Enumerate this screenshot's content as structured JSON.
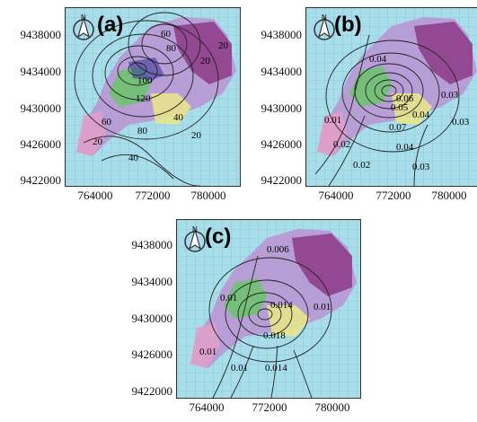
{
  "panels": [
    {
      "id": "a",
      "label": "(a)",
      "y_ticks": [
        "9438000",
        "9434000",
        "9430000",
        "9426000",
        "9422000"
      ],
      "x_ticks": [
        "764000",
        "772000",
        "780000"
      ],
      "contour_labels": [
        "60",
        "80",
        "100",
        "120",
        "20",
        "60",
        "80",
        "40",
        "20",
        "40",
        "20",
        "20"
      ]
    },
    {
      "id": "b",
      "label": "(b)",
      "y_ticks": [
        "9438000",
        "9434000",
        "9430000",
        "9426000",
        "9422000"
      ],
      "x_ticks": [
        "764000",
        "772000",
        "780000"
      ],
      "contour_labels": [
        "0.03",
        "0.04",
        "0.05",
        "0.06",
        "0.07",
        "0.04",
        "0.03",
        "0.02",
        "0.01",
        "0.04",
        "0.03",
        "0.02"
      ]
    },
    {
      "id": "c",
      "label": "(c)",
      "y_ticks": [
        "9438000",
        "9434000",
        "9430000",
        "9426000",
        "9422000"
      ],
      "x_ticks": [
        "764000",
        "772000",
        "780000"
      ],
      "contour_labels": [
        "0.006",
        "0.01",
        "0.014",
        "0.01",
        "0.018",
        "0.014",
        "0.01",
        "0.01"
      ]
    }
  ],
  "north_arrow_label": "N"
}
